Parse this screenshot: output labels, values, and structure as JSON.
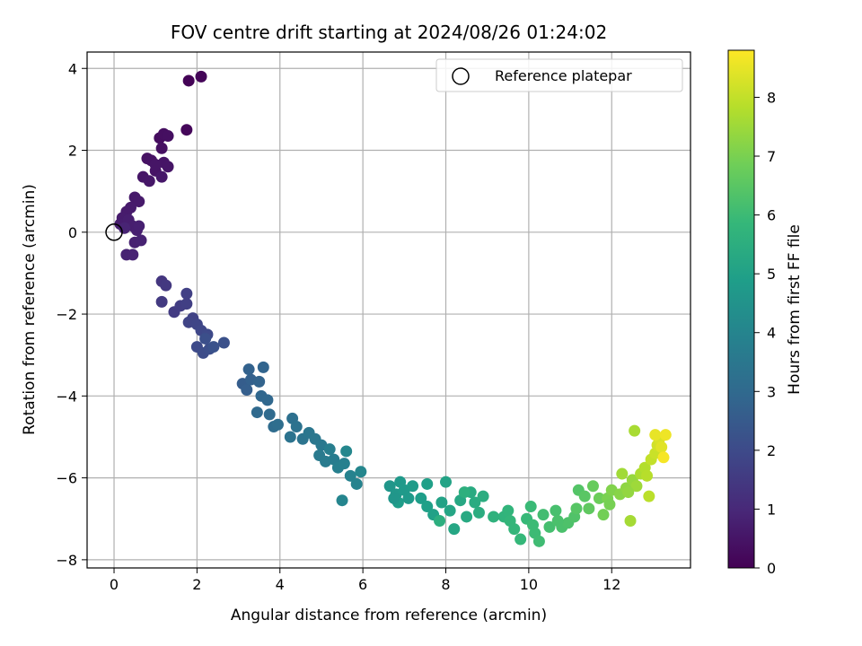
{
  "chart_data": {
    "type": "scatter",
    "title": "FOV centre drift starting at 2024/08/26 01:24:02",
    "xlabel": "Angular distance from reference (arcmin)",
    "ylabel": "Rotation from reference (arcmin)",
    "xlim": [
      -0.65,
      13.9
    ],
    "ylim": [
      -8.2,
      4.4
    ],
    "xticks": [
      0,
      2,
      4,
      6,
      8,
      10,
      12
    ],
    "yticks": [
      -8,
      -6,
      -4,
      -2,
      0,
      2,
      4
    ],
    "grid": true,
    "legend": {
      "placement": "top-right",
      "entries": [
        "Reference platepar"
      ]
    },
    "reference_point": {
      "x": 0,
      "y": 0
    },
    "colorbar": {
      "label": "Hours from first FF file",
      "range": [
        0,
        8.8
      ],
      "ticks": [
        0,
        1,
        2,
        3,
        4,
        5,
        6,
        7,
        8
      ],
      "colormap": [
        "#440154",
        "#482878",
        "#3e4989",
        "#31688e",
        "#26828e",
        "#1f9e89",
        "#35b779",
        "#6ece58",
        "#b5de2b",
        "#fde725"
      ]
    },
    "points": [
      [
        1.8,
        3.7,
        0.05
      ],
      [
        2.1,
        3.8,
        0.1
      ],
      [
        1.75,
        2.5,
        0.15
      ],
      [
        1.1,
        2.3,
        0.3
      ],
      [
        1.2,
        2.4,
        0.32
      ],
      [
        1.3,
        2.35,
        0.34
      ],
      [
        1.15,
        2.05,
        0.38
      ],
      [
        0.8,
        1.8,
        0.42
      ],
      [
        0.9,
        1.75,
        0.44
      ],
      [
        1.0,
        1.5,
        0.46
      ],
      [
        1.2,
        1.7,
        0.48
      ],
      [
        1.3,
        1.6,
        0.5
      ],
      [
        0.7,
        1.35,
        0.52
      ],
      [
        0.85,
        1.25,
        0.54
      ],
      [
        1.15,
        1.35,
        0.56
      ],
      [
        1.0,
        1.65,
        0.5
      ],
      [
        0.5,
        0.85,
        0.6
      ],
      [
        0.6,
        0.75,
        0.62
      ],
      [
        0.4,
        0.6,
        0.64
      ],
      [
        0.3,
        0.5,
        0.66
      ],
      [
        0.2,
        0.35,
        0.68
      ],
      [
        0.15,
        0.2,
        0.7
      ],
      [
        0.35,
        0.3,
        0.72
      ],
      [
        0.45,
        0.15,
        0.74
      ],
      [
        0.55,
        0.05,
        0.76
      ],
      [
        0.6,
        0.15,
        0.78
      ],
      [
        0.5,
        -0.25,
        0.8
      ],
      [
        0.65,
        -0.2,
        0.82
      ],
      [
        0.3,
        -0.55,
        0.84
      ],
      [
        0.45,
        -0.55,
        0.86
      ],
      [
        0.25,
        0.1,
        0.88
      ],
      [
        1.15,
        -1.2,
        1.4
      ],
      [
        1.25,
        -1.3,
        1.45
      ],
      [
        1.15,
        -1.7,
        1.5
      ],
      [
        1.45,
        -1.95,
        1.55
      ],
      [
        1.6,
        -1.8,
        1.6
      ],
      [
        1.75,
        -1.75,
        1.65
      ],
      [
        1.75,
        -1.5,
        1.7
      ],
      [
        1.9,
        -2.1,
        1.75
      ],
      [
        1.8,
        -2.2,
        1.8
      ],
      [
        2.0,
        -2.25,
        1.85
      ],
      [
        2.1,
        -2.4,
        1.9
      ],
      [
        2.25,
        -2.5,
        1.95
      ],
      [
        2.0,
        -2.8,
        2.0
      ],
      [
        2.15,
        -2.95,
        2.05
      ],
      [
        2.3,
        -2.85,
        2.1
      ],
      [
        2.2,
        -2.6,
        2.15
      ],
      [
        2.65,
        -2.7,
        2.2
      ],
      [
        2.4,
        -2.8,
        2.25
      ],
      [
        3.1,
        -3.7,
        2.6
      ],
      [
        3.2,
        -3.85,
        2.65
      ],
      [
        3.3,
        -3.6,
        2.7
      ],
      [
        3.25,
        -3.35,
        2.75
      ],
      [
        3.5,
        -3.65,
        2.8
      ],
      [
        3.6,
        -3.3,
        2.85
      ],
      [
        3.55,
        -4.0,
        2.9
      ],
      [
        3.7,
        -4.1,
        2.95
      ],
      [
        3.45,
        -4.4,
        3.0
      ],
      [
        3.75,
        -4.45,
        3.05
      ],
      [
        3.85,
        -4.75,
        3.1
      ],
      [
        3.95,
        -4.7,
        3.15
      ],
      [
        4.3,
        -4.55,
        3.25
      ],
      [
        4.4,
        -4.75,
        3.3
      ],
      [
        4.25,
        -5.0,
        3.35
      ],
      [
        4.55,
        -5.05,
        3.4
      ],
      [
        4.7,
        -4.9,
        3.45
      ],
      [
        4.85,
        -5.05,
        3.5
      ],
      [
        5.0,
        -5.2,
        3.55
      ],
      [
        4.95,
        -5.45,
        3.6
      ],
      [
        5.1,
        -5.6,
        3.65
      ],
      [
        5.3,
        -5.55,
        3.7
      ],
      [
        5.2,
        -5.3,
        3.75
      ],
      [
        5.4,
        -5.75,
        3.8
      ],
      [
        5.55,
        -5.65,
        3.85
      ],
      [
        5.7,
        -5.95,
        3.9
      ],
      [
        5.85,
        -6.15,
        3.95
      ],
      [
        5.5,
        -6.55,
        4.0
      ],
      [
        5.95,
        -5.85,
        4.05
      ],
      [
        5.6,
        -5.35,
        4.1
      ],
      [
        6.65,
        -6.2,
        4.6
      ],
      [
        6.8,
        -6.4,
        4.65
      ],
      [
        6.9,
        -6.1,
        4.7
      ],
      [
        7.0,
        -6.3,
        4.75
      ],
      [
        7.2,
        -6.2,
        4.8
      ],
      [
        6.85,
        -6.6,
        4.85
      ],
      [
        7.4,
        -6.5,
        4.9
      ],
      [
        7.55,
        -6.7,
        4.95
      ],
      [
        7.7,
        -6.9,
        5.0
      ],
      [
        7.9,
        -6.6,
        5.05
      ],
      [
        8.0,
        -6.1,
        5.1
      ],
      [
        8.1,
        -6.8,
        5.15
      ],
      [
        8.2,
        -7.25,
        5.2
      ],
      [
        8.35,
        -6.55,
        5.25
      ],
      [
        8.5,
        -6.95,
        5.3
      ],
      [
        8.6,
        -6.35,
        5.35
      ],
      [
        8.7,
        -6.6,
        5.4
      ],
      [
        8.8,
        -6.85,
        5.45
      ],
      [
        7.85,
        -7.05,
        5.5
      ],
      [
        8.45,
        -6.35,
        5.55
      ],
      [
        9.4,
        -6.95,
        5.7
      ],
      [
        9.5,
        -6.8,
        5.75
      ],
      [
        9.65,
        -7.25,
        5.8
      ],
      [
        9.8,
        -7.5,
        5.85
      ],
      [
        9.95,
        -7.0,
        5.9
      ],
      [
        10.05,
        -6.7,
        5.95
      ],
      [
        10.15,
        -7.35,
        6.0
      ],
      [
        10.25,
        -7.55,
        6.05
      ],
      [
        10.35,
        -6.9,
        6.1
      ],
      [
        10.5,
        -7.2,
        6.15
      ],
      [
        10.65,
        -6.8,
        6.2
      ],
      [
        10.8,
        -7.2,
        6.25
      ],
      [
        10.95,
        -7.1,
        6.3
      ],
      [
        11.1,
        -6.95,
        6.35
      ],
      [
        11.2,
        -6.3,
        6.4
      ],
      [
        11.35,
        -6.45,
        6.5
      ],
      [
        11.45,
        -6.75,
        6.6
      ],
      [
        11.55,
        -6.2,
        6.7
      ],
      [
        11.7,
        -6.5,
        6.8
      ],
      [
        11.8,
        -6.9,
        6.9
      ],
      [
        11.9,
        -6.5,
        7.0
      ],
      [
        12.0,
        -6.3,
        7.1
      ],
      [
        12.2,
        -6.4,
        7.2
      ],
      [
        12.35,
        -6.25,
        7.3
      ],
      [
        12.5,
        -6.05,
        7.4
      ],
      [
        12.6,
        -6.2,
        7.5
      ],
      [
        12.25,
        -5.9,
        7.55
      ],
      [
        12.45,
        -7.05,
        7.6
      ],
      [
        12.55,
        -4.85,
        7.65
      ],
      [
        12.7,
        -5.9,
        7.7
      ],
      [
        12.8,
        -5.75,
        7.8
      ],
      [
        12.9,
        -6.45,
        7.9
      ],
      [
        12.95,
        -5.55,
        8.0
      ],
      [
        13.05,
        -5.4,
        8.1
      ],
      [
        13.1,
        -5.2,
        8.2
      ],
      [
        13.15,
        -5.05,
        8.3
      ],
      [
        13.2,
        -5.25,
        8.4
      ],
      [
        13.05,
        -4.95,
        8.5
      ],
      [
        13.3,
        -4.95,
        8.6
      ],
      [
        13.25,
        -5.5,
        8.7
      ],
      [
        12.85,
        -5.95,
        7.85
      ],
      [
        12.4,
        -6.35,
        7.35
      ],
      [
        11.95,
        -6.65,
        6.95
      ],
      [
        11.15,
        -6.75,
        6.45
      ],
      [
        10.7,
        -7.05,
        6.25
      ],
      [
        10.1,
        -7.15,
        6.0
      ],
      [
        9.55,
        -7.05,
        5.8
      ],
      [
        9.15,
        -6.95,
        5.65
      ],
      [
        8.9,
        -6.45,
        5.45
      ],
      [
        7.55,
        -6.15,
        4.95
      ],
      [
        7.1,
        -6.5,
        4.75
      ],
      [
        6.75,
        -6.5,
        4.6
      ]
    ]
  }
}
